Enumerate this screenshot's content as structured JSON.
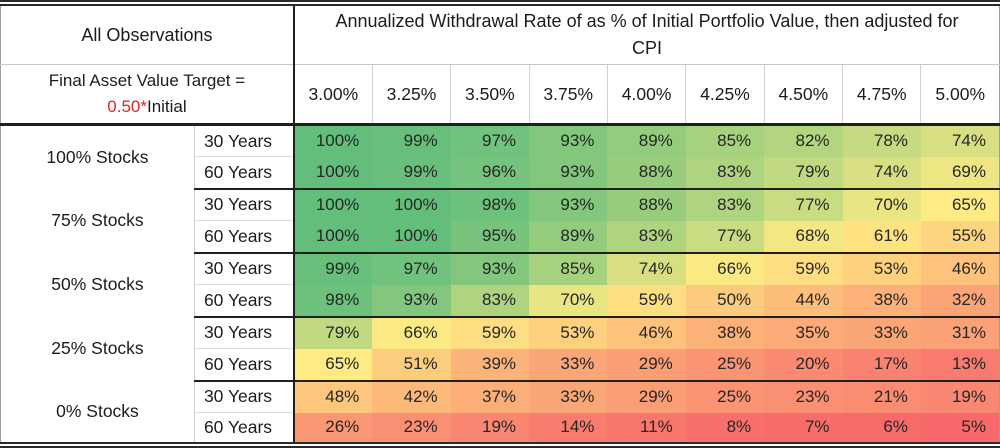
{
  "left_header": {
    "all_observations": "All Observations",
    "target_line_prefix": "Final Asset Value Target =",
    "target_line_red": "0.50*",
    "target_line_suffix": "Initial",
    "red_accent": "#e02424"
  },
  "chart_data": {
    "type": "heatmap",
    "title": "Annualized Withdrawal Rate of as % of Initial Portfolio Value, then adjusted for CPI",
    "columns": [
      "3.00%",
      "3.25%",
      "3.50%",
      "3.75%",
      "4.00%",
      "4.25%",
      "4.50%",
      "4.75%",
      "5.00%"
    ],
    "value_suffix": "%",
    "row_groups": [
      {
        "label": "100% Stocks",
        "rows": [
          {
            "label": "30 Years",
            "values": [
              100,
              99,
              97,
              93,
              89,
              85,
              82,
              78,
              74
            ]
          },
          {
            "label": "60 Years",
            "values": [
              100,
              99,
              96,
              93,
              88,
              83,
              79,
              74,
              69
            ]
          }
        ]
      },
      {
        "label": "75% Stocks",
        "rows": [
          {
            "label": "30 Years",
            "values": [
              100,
              100,
              98,
              93,
              88,
              83,
              77,
              70,
              65
            ]
          },
          {
            "label": "60 Years",
            "values": [
              100,
              100,
              95,
              89,
              83,
              77,
              68,
              61,
              55
            ]
          }
        ]
      },
      {
        "label": "50% Stocks",
        "rows": [
          {
            "label": "30 Years",
            "values": [
              99,
              97,
              93,
              85,
              74,
              66,
              59,
              53,
              46
            ]
          },
          {
            "label": "60 Years",
            "values": [
              98,
              93,
              83,
              70,
              59,
              50,
              44,
              38,
              32
            ]
          }
        ]
      },
      {
        "label": "25% Stocks",
        "rows": [
          {
            "label": "30 Years",
            "values": [
              79,
              66,
              59,
              53,
              46,
              38,
              35,
              33,
              31
            ]
          },
          {
            "label": "60 Years",
            "values": [
              65,
              51,
              39,
              33,
              29,
              25,
              20,
              17,
              13
            ]
          }
        ]
      },
      {
        "label": "0% Stocks",
        "rows": [
          {
            "label": "30 Years",
            "values": [
              48,
              42,
              37,
              33,
              29,
              25,
              23,
              21,
              19
            ]
          },
          {
            "label": "60 Years",
            "values": [
              26,
              23,
              19,
              14,
              11,
              8,
              7,
              6,
              5
            ]
          }
        ]
      }
    ],
    "color_scale": {
      "min": {
        "value": 5,
        "color": "#F8696B"
      },
      "mid": {
        "value": 65,
        "color": "#FFEB84"
      },
      "max": {
        "value": 100,
        "color": "#63BE7B"
      }
    },
    "grid": false,
    "legend_position": "none"
  }
}
